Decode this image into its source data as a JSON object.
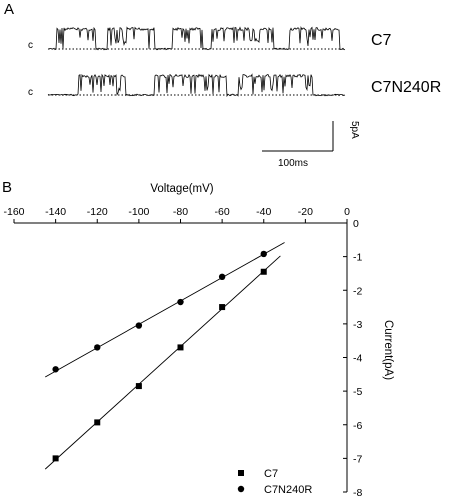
{
  "panel_a": {
    "label": "A",
    "closed_marker": "c",
    "traces": [
      {
        "name": "C7",
        "open_segments": [
          [
            0.03,
            0.16
          ],
          [
            0.2,
            0.36
          ],
          [
            0.42,
            0.52
          ],
          [
            0.55,
            0.76
          ],
          [
            0.81,
            0.98
          ]
        ]
      },
      {
        "name": "C7N240R",
        "open_segments": [
          [
            0.1,
            0.26
          ],
          [
            0.36,
            0.6
          ],
          [
            0.64,
            0.89
          ]
        ]
      }
    ],
    "scalebar": {
      "current_label": "5pA",
      "time_label": "100ms"
    }
  },
  "chart_data": {
    "type": "scatter",
    "panel_label": "B",
    "xlabel": "Voltage(mV)",
    "ylabel": "Current(pA)",
    "xlim": [
      -160,
      0
    ],
    "ylim": [
      -8,
      0
    ],
    "x_ticks": [
      -160,
      -140,
      -120,
      -100,
      -80,
      -60,
      -40,
      -20,
      0
    ],
    "y_ticks": [
      0,
      -1,
      -2,
      -3,
      -4,
      -5,
      -6,
      -7,
      -8
    ],
    "x_axis_position": "top",
    "y_axis_position": "right",
    "grid": false,
    "legend_position": "bottom-right",
    "series": [
      {
        "name": "C7",
        "marker": "square",
        "x": [
          -140,
          -120,
          -100,
          -80,
          -60,
          -40
        ],
        "y": [
          -7.0,
          -5.93,
          -4.85,
          -3.7,
          -2.5,
          -1.45
        ],
        "fit_line": {
          "x": [
            -145,
            -32
          ],
          "y": [
            -7.32,
            -0.98
          ]
        }
      },
      {
        "name": "C7N240R",
        "marker": "circle",
        "x": [
          -140,
          -120,
          -100,
          -80,
          -60,
          -40
        ],
        "y": [
          -4.35,
          -3.7,
          -3.05,
          -2.35,
          -1.6,
          -0.92
        ],
        "fit_line": {
          "x": [
            -145,
            -30
          ],
          "y": [
            -4.58,
            -0.58
          ]
        }
      }
    ]
  }
}
